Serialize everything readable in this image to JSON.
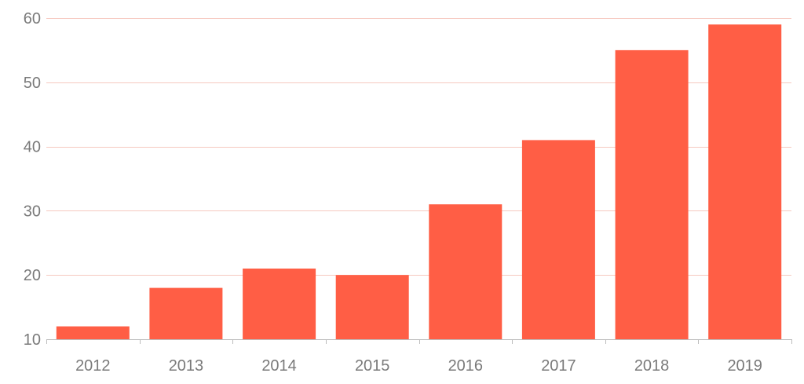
{
  "chart_data": {
    "type": "bar",
    "categories": [
      "2012",
      "2013",
      "2014",
      "2015",
      "2016",
      "2017",
      "2018",
      "2019"
    ],
    "values": [
      12,
      18,
      21,
      20,
      31,
      41,
      55,
      59
    ],
    "ylim": [
      10,
      60
    ],
    "yticks": [
      10,
      20,
      30,
      40,
      50,
      60
    ],
    "grid": true,
    "bar_color": "#ff5e45",
    "grid_color": "#f6c9c0",
    "axis_color": "#bdbdbd",
    "label_color": "#7a7a7a"
  }
}
